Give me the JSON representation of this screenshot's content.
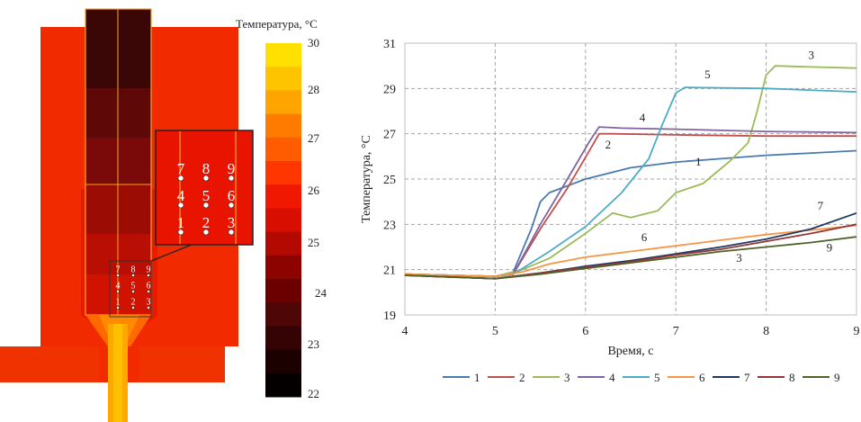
{
  "left_panel": {
    "colorbar_title": "Температура, °C",
    "colorbar_ticks": [
      "30",
      "28",
      "27",
      "26",
      "25",
      "24",
      "23",
      "22"
    ],
    "colorbar_colors": [
      "#ffe000",
      "#ffc400",
      "#ffa400",
      "#ff7b00",
      "#ff5b00",
      "#ff3600",
      "#f01800",
      "#d80f00",
      "#b20900",
      "#8c0300",
      "#6c0000",
      "#4f0606",
      "#350303",
      "#1c0101",
      "#050000"
    ],
    "sensor_rows": [
      [
        "7",
        "8",
        "9"
      ],
      [
        "4",
        "5",
        "6"
      ],
      [
        "1",
        "2",
        "3"
      ]
    ],
    "colors": {
      "hot": "#f22a00",
      "warm": "#e81400",
      "dark": "#7a0a0a",
      "darkest": "#3a0606",
      "inlet": "#ffa800",
      "outline": "#f5a623"
    }
  },
  "chart_data": {
    "type": "line",
    "xlabel": "Время, с",
    "ylabel": "Температура, °C",
    "xlim": [
      4,
      9
    ],
    "ylim": [
      19,
      31
    ],
    "xticks": [
      "4",
      "5",
      "6",
      "7",
      "8",
      "9"
    ],
    "yticks": [
      "19",
      "21",
      "23",
      "25",
      "27",
      "29",
      "31"
    ],
    "grid": true,
    "grid_style": "dashed",
    "legend": "bottom",
    "series": [
      {
        "name": "1",
        "color": "#4a7ab0",
        "points": [
          [
            4,
            20.8
          ],
          [
            5,
            20.7
          ],
          [
            5.2,
            20.9
          ],
          [
            5.4,
            22.8
          ],
          [
            5.5,
            24.0
          ],
          [
            5.6,
            24.4
          ],
          [
            6,
            25.0
          ],
          [
            6.5,
            25.5
          ],
          [
            7,
            25.75
          ],
          [
            7.5,
            25.9
          ],
          [
            8,
            26.05
          ],
          [
            8.5,
            26.15
          ],
          [
            9,
            26.25
          ]
        ]
      },
      {
        "name": "2",
        "color": "#c0504d",
        "points": [
          [
            4,
            20.8
          ],
          [
            5,
            20.7
          ],
          [
            5.2,
            20.8
          ],
          [
            5.5,
            22.8
          ],
          [
            5.8,
            24.6
          ],
          [
            6.05,
            26.3
          ],
          [
            6.15,
            27.0
          ],
          [
            6.3,
            27.0
          ],
          [
            7,
            26.95
          ],
          [
            8,
            26.9
          ],
          [
            9,
            26.9
          ]
        ]
      },
      {
        "name": "3",
        "color": "#9bbb59",
        "points": [
          [
            4,
            20.8
          ],
          [
            5,
            20.7
          ],
          [
            5.3,
            21.0
          ],
          [
            5.6,
            21.5
          ],
          [
            6,
            22.6
          ],
          [
            6.3,
            23.5
          ],
          [
            6.5,
            23.3
          ],
          [
            6.8,
            23.6
          ],
          [
            7,
            24.4
          ],
          [
            7.3,
            24.8
          ],
          [
            7.6,
            25.8
          ],
          [
            7.8,
            26.6
          ],
          [
            7.9,
            28.0
          ],
          [
            8.0,
            29.6
          ],
          [
            8.1,
            30.0
          ],
          [
            8.5,
            29.95
          ],
          [
            9,
            29.9
          ]
        ]
      },
      {
        "name": "4",
        "color": "#8064a2",
        "points": [
          [
            4,
            20.8
          ],
          [
            5,
            20.7
          ],
          [
            5.2,
            20.8
          ],
          [
            5.5,
            23.0
          ],
          [
            5.8,
            25.0
          ],
          [
            6.05,
            26.7
          ],
          [
            6.15,
            27.3
          ],
          [
            6.4,
            27.25
          ],
          [
            7,
            27.2
          ],
          [
            8,
            27.1
          ],
          [
            9,
            27.05
          ]
        ]
      },
      {
        "name": "5",
        "color": "#4bacc6",
        "points": [
          [
            4,
            20.8
          ],
          [
            5,
            20.7
          ],
          [
            5.2,
            20.8
          ],
          [
            5.6,
            21.8
          ],
          [
            6.0,
            22.9
          ],
          [
            6.4,
            24.4
          ],
          [
            6.7,
            25.9
          ],
          [
            6.85,
            27.4
          ],
          [
            7.0,
            28.8
          ],
          [
            7.1,
            29.05
          ],
          [
            8,
            29.0
          ],
          [
            9,
            28.85
          ]
        ]
      },
      {
        "name": "6",
        "color": "#f79646",
        "points": [
          [
            4,
            20.8
          ],
          [
            5,
            20.7
          ],
          [
            5.3,
            20.9
          ],
          [
            5.6,
            21.25
          ],
          [
            6,
            21.55
          ],
          [
            6.5,
            21.8
          ],
          [
            7,
            22.05
          ],
          [
            7.5,
            22.3
          ],
          [
            8,
            22.55
          ],
          [
            8.5,
            22.75
          ],
          [
            9,
            22.95
          ]
        ]
      },
      {
        "name": "7",
        "color": "#1f3864",
        "points": [
          [
            4,
            20.75
          ],
          [
            5,
            20.6
          ],
          [
            5.5,
            20.85
          ],
          [
            6,
            21.15
          ],
          [
            6.5,
            21.4
          ],
          [
            7,
            21.7
          ],
          [
            7.5,
            22.0
          ],
          [
            8,
            22.35
          ],
          [
            8.5,
            22.8
          ],
          [
            9,
            23.5
          ]
        ]
      },
      {
        "name": "8",
        "color": "#943634",
        "points": [
          [
            4,
            20.75
          ],
          [
            5,
            20.6
          ],
          [
            5.5,
            20.85
          ],
          [
            6,
            21.1
          ],
          [
            6.5,
            21.35
          ],
          [
            7,
            21.65
          ],
          [
            7.5,
            21.9
          ],
          [
            8,
            22.25
          ],
          [
            8.5,
            22.6
          ],
          [
            9,
            23.0
          ]
        ]
      },
      {
        "name": "9",
        "color": "#4f6228",
        "points": [
          [
            4,
            20.75
          ],
          [
            5,
            20.6
          ],
          [
            5.5,
            20.8
          ],
          [
            6,
            21.05
          ],
          [
            6.5,
            21.3
          ],
          [
            7,
            21.55
          ],
          [
            7.5,
            21.8
          ],
          [
            8,
            22.0
          ],
          [
            8.5,
            22.2
          ],
          [
            9,
            22.45
          ]
        ]
      }
    ],
    "annotations": [
      {
        "text": "5",
        "x": 7.35,
        "y": 29.45
      },
      {
        "text": "3",
        "x": 8.5,
        "y": 30.3
      },
      {
        "text": "4",
        "x": 6.63,
        "y": 27.55
      },
      {
        "text": "2",
        "x": 6.25,
        "y": 26.35
      },
      {
        "text": "1",
        "x": 7.25,
        "y": 25.6
      },
      {
        "text": "6",
        "x": 6.65,
        "y": 22.25
      },
      {
        "text": "7",
        "x": 8.6,
        "y": 23.65
      },
      {
        "text": "3",
        "x": 7.7,
        "y": 21.35
      },
      {
        "text": "9",
        "x": 8.7,
        "y": 21.8
      }
    ]
  }
}
